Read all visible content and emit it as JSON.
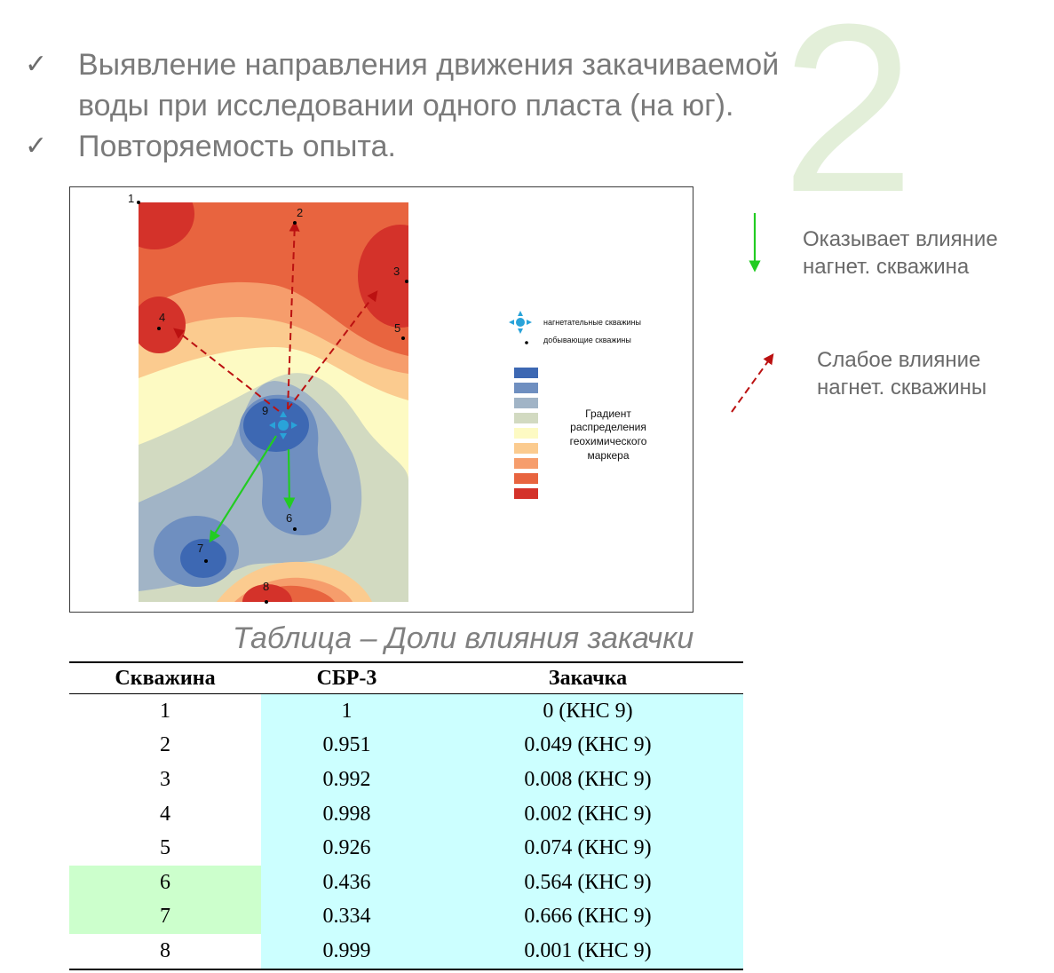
{
  "slide_number": "2",
  "bullets": [
    {
      "lines": [
        "Выявление направления движения закачиваемой",
        "воды при исследовании одного пласта (на юг)."
      ]
    },
    {
      "lines": [
        "Повторяемость опыта."
      ]
    }
  ],
  "check_glyph": "✓",
  "map": {
    "well_labels": [
      "1",
      "2",
      "3",
      "4",
      "5",
      "6",
      "7",
      "8",
      "9"
    ],
    "legend": {
      "injection_label": "нагнетательные скважины",
      "production_label": "добывающие скважины",
      "gradient_label_lines": [
        "Градиент",
        "распределения",
        "геохимического",
        "маркера"
      ],
      "gradient_colors": [
        "#3d68b3",
        "#6f8fc0",
        "#a1b4c6",
        "#d2dac1",
        "#fdfac3",
        "#fbcb8f",
        "#f69d6c",
        "#e8643f",
        "#d4322a"
      ]
    },
    "colors": {
      "strong_arrow": "#22cc22",
      "weak_arrow": "#bb1111",
      "well_marker": "#29a3d9"
    }
  },
  "key": {
    "strong": {
      "lines": [
        "Оказывает влияние",
        "нагнет. скважина"
      ]
    },
    "weak": {
      "lines": [
        "Слабое влияние",
        "нагнет. скважины"
      ]
    }
  },
  "table": {
    "caption": "Таблица – Доли влияния закачки",
    "headers": [
      "Скважина",
      "СБР-3",
      "Закачка"
    ],
    "rows": [
      {
        "well": "1",
        "sbr": "1",
        "inj": "0 (КНС 9)"
      },
      {
        "well": "2",
        "sbr": "0.951",
        "inj": "0.049 (КНС 9)"
      },
      {
        "well": "3",
        "sbr": "0.992",
        "inj": "0.008 (КНС 9)"
      },
      {
        "well": "4",
        "sbr": "0.998",
        "inj": "0.002 (КНС 9)"
      },
      {
        "well": "5",
        "sbr": "0.926",
        "inj": "0.074 (КНС 9)"
      },
      {
        "well": "6",
        "sbr": "0.436",
        "inj": "0.564 (КНС 9)"
      },
      {
        "well": "7",
        "sbr": "0.334",
        "inj": "0.666 (КНС 9)"
      },
      {
        "well": "8",
        "sbr": "0.999",
        "inj": "0.001 (КНС 9)"
      }
    ],
    "highlight_colors": {
      "cyan": "#ccffff",
      "green": "#ccffcc"
    }
  }
}
